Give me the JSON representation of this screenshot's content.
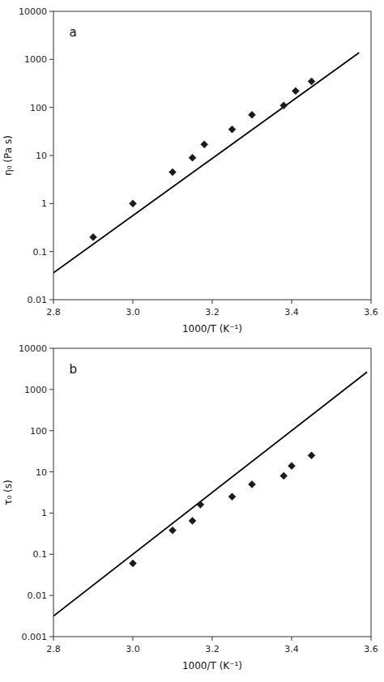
{
  "chart_data": [
    {
      "type": "scatter",
      "annotation": "a",
      "x_label": "1000/T (K⁻¹)",
      "y_label": "η₀ (Pa s)",
      "log": "y",
      "grid": false,
      "xlim": [
        2.8,
        3.6
      ],
      "xticks": [
        2.8,
        {
          "value": 3.0,
          "label": "3.0"
        },
        3.2,
        3.4,
        3.6
      ],
      "ylim": [
        0.01,
        10000
      ],
      "yticks": [
        0.01,
        0.1,
        1,
        10,
        100,
        1000,
        10000
      ],
      "series": [
        {
          "type": "scatter",
          "marker": "diamond",
          "color": "#1a1a1a",
          "x": [
            2.9,
            3.0,
            3.1,
            3.15,
            3.18,
            3.25,
            3.3,
            3.38,
            3.41,
            3.45
          ],
          "values": [
            0.2,
            1.0,
            4.5,
            9.0,
            17.0,
            35.0,
            70.0,
            110.0,
            220.0,
            350.0
          ]
        },
        {
          "type": "line",
          "line_style": "solid",
          "color": "#000000",
          "x": [
            2.8,
            3.57
          ],
          "values": [
            0.03631,
            1385.2
          ]
        }
      ]
    },
    {
      "type": "scatter",
      "annotation": "b",
      "x_label": "1000/T (K⁻¹)",
      "y_label": "τ₀ (s)",
      "log": "y",
      "grid": false,
      "xlim": [
        2.8,
        3.6
      ],
      "xticks": [
        2.8,
        {
          "value": 3.0,
          "label": "3.0"
        },
        3.2,
        3.4,
        3.6
      ],
      "ylim": [
        0.001,
        10000
      ],
      "yticks": [
        0.001,
        0.01,
        0.1,
        1,
        10,
        100,
        1000,
        10000
      ],
      "series": [
        {
          "type": "scatter",
          "marker": "diamond",
          "color": "#1a1a1a",
          "x": [
            3.0,
            3.1,
            3.15,
            3.17,
            3.25,
            3.3,
            3.38,
            3.4,
            3.45
          ],
          "values": [
            0.06,
            0.38,
            0.65,
            1.6,
            2.5,
            5.0,
            8.0,
            14.0,
            25.0
          ]
        },
        {
          "type": "line",
          "line_style": "solid",
          "color": "#000000",
          "x": [
            2.8,
            3.59
          ],
          "values": [
            0.0031623,
            2660.7
          ]
        }
      ]
    }
  ]
}
